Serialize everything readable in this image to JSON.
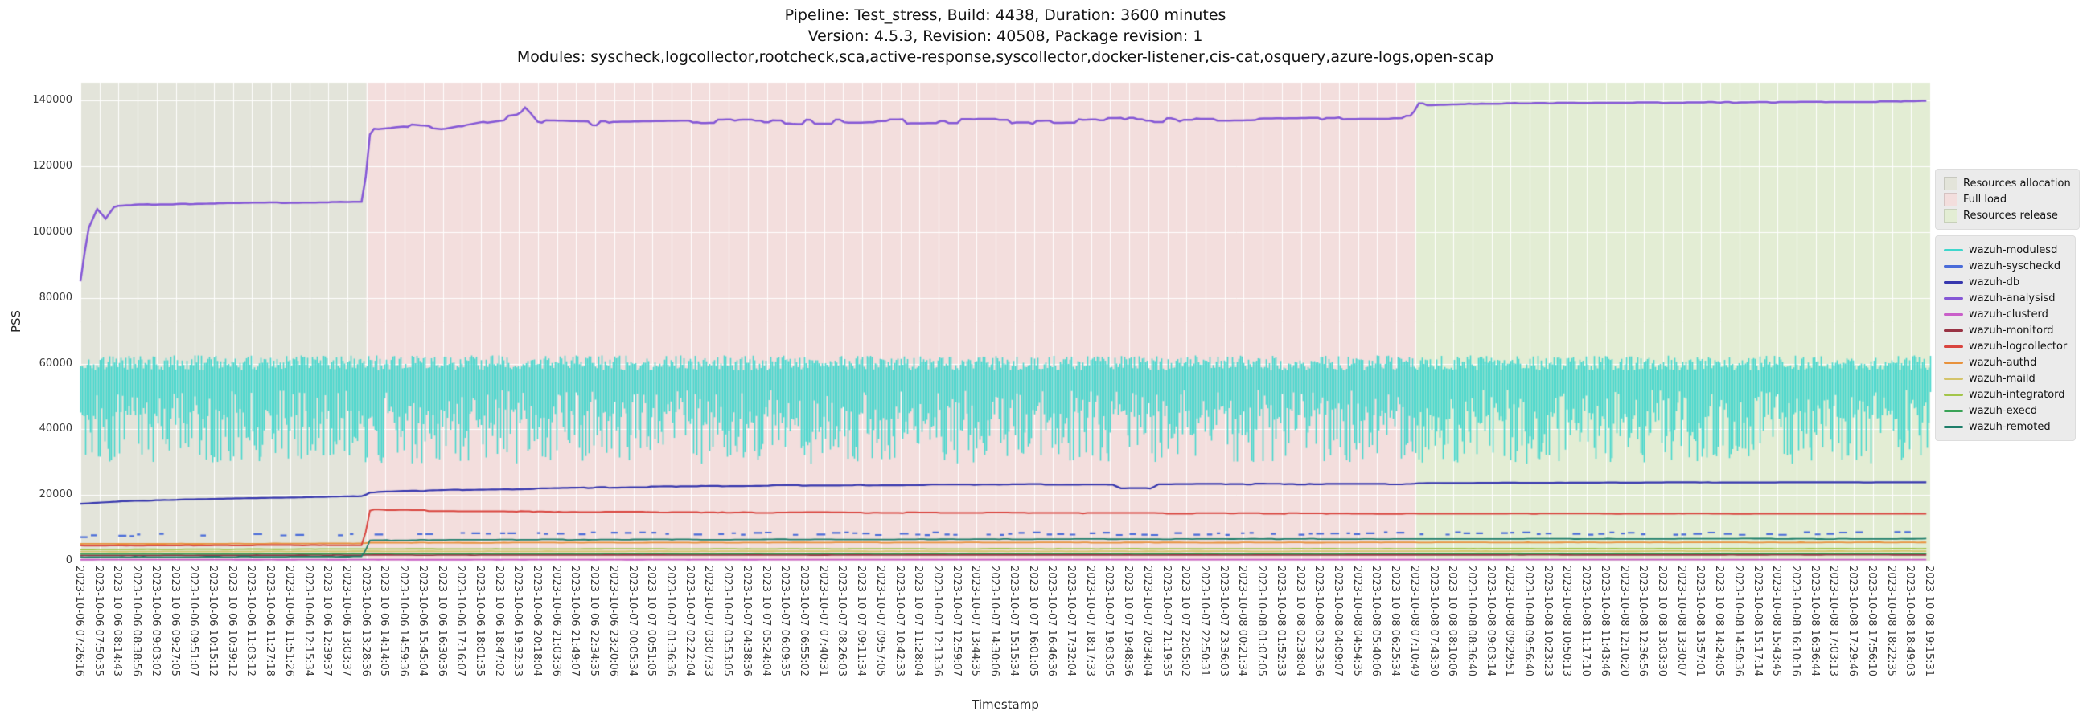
{
  "chart_data": {
    "type": "line",
    "title": "Pipeline: Test_stress, Build: 4438, Duration: 3600 minutes",
    "subtitle1": "Version: 4.5.3, Revision: 40508, Package revision: 1",
    "subtitle2": "Modules: syscheck,logcollector,rootcheck,sca,active-response,syscollector,docker-listener,cis-cat,osquery,azure-logs,open-scap",
    "xlabel": "Timestamp",
    "ylabel": "PSS",
    "ylim": [
      0,
      145500
    ],
    "yticks": [
      0,
      20000,
      40000,
      60000,
      80000,
      100000,
      120000,
      140000
    ],
    "grid": true,
    "legend_position": "right",
    "x_categories": [
      "2023-10-06 07:26:16",
      "2023-10-06 07:50:35",
      "2023-10-06 08:14:43",
      "2023-10-06 08:38:56",
      "2023-10-06 09:03:02",
      "2023-10-06 09:27:05",
      "2023-10-06 09:51:07",
      "2023-10-06 10:15:12",
      "2023-10-06 10:39:12",
      "2023-10-06 11:03:12",
      "2023-10-06 11:27:18",
      "2023-10-06 11:51:26",
      "2023-10-06 12:15:34",
      "2023-10-06 12:39:37",
      "2023-10-06 13:03:37",
      "2023-10-06 13:28:36",
      "2023-10-06 14:14:05",
      "2023-10-06 14:59:36",
      "2023-10-06 15:45:04",
      "2023-10-06 16:30:36",
      "2023-10-06 17:16:07",
      "2023-10-06 18:01:35",
      "2023-10-06 18:47:02",
      "2023-10-06 19:32:33",
      "2023-10-06 20:18:04",
      "2023-10-06 21:03:36",
      "2023-10-06 21:49:07",
      "2023-10-06 22:34:35",
      "2023-10-06 23:20:06",
      "2023-10-07 00:05:34",
      "2023-10-07 00:51:05",
      "2023-10-07 01:36:36",
      "2023-10-07 02:22:04",
      "2023-10-07 03:07:33",
      "2023-10-07 03:53:05",
      "2023-10-07 04:38:36",
      "2023-10-07 05:24:04",
      "2023-10-07 06:09:35",
      "2023-10-07 06:55:02",
      "2023-10-07 07:40:31",
      "2023-10-07 08:26:03",
      "2023-10-07 09:11:34",
      "2023-10-07 09:57:05",
      "2023-10-07 10:42:33",
      "2023-10-07 11:28:04",
      "2023-10-07 12:13:36",
      "2023-10-07 12:59:07",
      "2023-10-07 13:44:35",
      "2023-10-07 14:30:06",
      "2023-10-07 15:15:34",
      "2023-10-07 16:01:05",
      "2023-10-07 16:46:36",
      "2023-10-07 17:32:04",
      "2023-10-07 18:17:33",
      "2023-10-07 19:03:05",
      "2023-10-07 19:48:36",
      "2023-10-07 20:34:04",
      "2023-10-07 21:19:35",
      "2023-10-07 22:05:02",
      "2023-10-07 22:50:31",
      "2023-10-07 23:36:03",
      "2023-10-08 00:21:34",
      "2023-10-08 01:07:05",
      "2023-10-08 01:52:33",
      "2023-10-08 02:38:04",
      "2023-10-08 03:23:36",
      "2023-10-08 04:09:07",
      "2023-10-08 04:54:35",
      "2023-10-08 05:40:06",
      "2023-10-08 06:25:34",
      "2023-10-08 07:10:49",
      "2023-10-08 07:43:30",
      "2023-10-08 08:10:06",
      "2023-10-08 08:36:40",
      "2023-10-08 09:03:14",
      "2023-10-08 09:29:51",
      "2023-10-08 09:56:40",
      "2023-10-08 10:23:23",
      "2023-10-08 10:50:13",
      "2023-10-08 11:17:10",
      "2023-10-08 11:43:46",
      "2023-10-08 12:10:20",
      "2023-10-08 12:36:56",
      "2023-10-08 13:03:30",
      "2023-10-08 13:30:07",
      "2023-10-08 13:57:01",
      "2023-10-08 14:24:05",
      "2023-10-08 14:50:36",
      "2023-10-08 15:17:14",
      "2023-10-08 15:43:45",
      "2023-10-08 16:10:16",
      "2023-10-08 16:36:44",
      "2023-10-08 17:03:13",
      "2023-10-08 17:29:46",
      "2023-10-08 17:56:10",
      "2023-10-08 18:22:35",
      "2023-10-08 18:49:03",
      "2023-10-08 19:15:31"
    ],
    "phases": [
      {
        "label": "Resources allocation",
        "color": "#e3e4da",
        "start_index": 0,
        "end_index": 15
      },
      {
        "label": "Full load",
        "color": "#f3dedd",
        "start_index": 15,
        "end_index": 70
      },
      {
        "label": "Resources release",
        "color": "#e3edd4",
        "start_index": 70,
        "end_index": 97
      }
    ],
    "series": [
      {
        "name": "wazuh-modulesd",
        "color": "#3fd6cc",
        "style": "band",
        "z": 1,
        "band": {
          "high_min": 58000,
          "high_max": 62500,
          "low_min": 29500,
          "low_max": 46500,
          "shallow_low_min": 43000,
          "shallow_low_max": 52000,
          "shallow_prob": 0.32
        }
      },
      {
        "name": "wazuh-syscheckd",
        "color": "#4a6cd9",
        "style": "dashes",
        "z": 3,
        "jitter": 450,
        "keypoints": [
          [
            0,
            7600
          ],
          [
            15,
            8150
          ],
          [
            97,
            8300
          ]
        ]
      },
      {
        "name": "wazuh-db",
        "color": "#3737ae",
        "style": "line",
        "z": 5,
        "noise": 50,
        "noise_ranges": [
          [
            15,
            70,
            130
          ]
        ],
        "width": 2.2,
        "keypoints": [
          [
            0,
            17300
          ],
          [
            2,
            18050
          ],
          [
            5,
            18550
          ],
          [
            9,
            19050
          ],
          [
            12,
            19350
          ],
          [
            14.9,
            19700
          ],
          [
            15.05,
            20750
          ],
          [
            17,
            21150
          ],
          [
            20,
            21550
          ],
          [
            24,
            21950
          ],
          [
            28,
            22350
          ],
          [
            33,
            22700
          ],
          [
            38,
            22950
          ],
          [
            44,
            23100
          ],
          [
            50,
            23200
          ],
          [
            54.2,
            23250
          ],
          [
            54.5,
            22050
          ],
          [
            56.2,
            22100
          ],
          [
            56.5,
            23250
          ],
          [
            62,
            23300
          ],
          [
            69.9,
            23350
          ],
          [
            70.05,
            23600
          ],
          [
            78,
            23750
          ],
          [
            88,
            23850
          ],
          [
            97,
            23900
          ]
        ]
      },
      {
        "name": "wazuh-analysisd",
        "color": "#8557d6",
        "style": "line",
        "z": 6,
        "noise": 120,
        "noise_ranges": [
          [
            15,
            70,
            750
          ]
        ],
        "width": 2.5,
        "keypoints": [
          [
            0,
            85000
          ],
          [
            0.4,
            100800
          ],
          [
            0.9,
            107200
          ],
          [
            1.3,
            103900
          ],
          [
            1.8,
            107900
          ],
          [
            3,
            108400
          ],
          [
            8,
            108800
          ],
          [
            14.9,
            109300
          ],
          [
            15.05,
            128200
          ],
          [
            15.5,
            131800
          ],
          [
            17,
            132600
          ],
          [
            19,
            131400
          ],
          [
            21,
            133600
          ],
          [
            23,
            135200
          ],
          [
            23.4,
            137800
          ],
          [
            24,
            133600
          ],
          [
            27,
            133100
          ],
          [
            31,
            133500
          ],
          [
            35,
            133800
          ],
          [
            40,
            133500
          ],
          [
            45,
            133900
          ],
          [
            50,
            133700
          ],
          [
            55,
            134100
          ],
          [
            60,
            134000
          ],
          [
            64,
            134400
          ],
          [
            68,
            134700
          ],
          [
            69.9,
            134900
          ],
          [
            70.05,
            138600
          ],
          [
            73,
            139100
          ],
          [
            78,
            139350
          ],
          [
            85,
            139500
          ],
          [
            92,
            139650
          ],
          [
            95.5,
            139700
          ],
          [
            95.8,
            139950
          ],
          [
            97,
            139950
          ]
        ]
      },
      {
        "name": "wazuh-clusterd",
        "color": "#c95fc9",
        "style": "line",
        "z": 2,
        "noise": 15,
        "width": 1.8,
        "keypoints": [
          [
            0,
            310
          ],
          [
            97,
            350
          ]
        ]
      },
      {
        "name": "wazuh-monitord",
        "color": "#993344",
        "style": "line",
        "z": 2,
        "noise": 30,
        "width": 1.8,
        "keypoints": [
          [
            0,
            1620
          ],
          [
            15,
            1720
          ],
          [
            97,
            1780
          ]
        ]
      },
      {
        "name": "wazuh-logcollector",
        "color": "#d9453f",
        "style": "line",
        "z": 4,
        "noise": 50,
        "noise_ranges": [
          [
            15,
            17,
            650
          ],
          [
            17,
            70,
            150
          ]
        ],
        "width": 2,
        "keypoints": [
          [
            0,
            4600
          ],
          [
            14.9,
            4750
          ],
          [
            15.05,
            14800
          ],
          [
            15.4,
            15350
          ],
          [
            16,
            15100
          ],
          [
            18,
            15050
          ],
          [
            22,
            14950
          ],
          [
            28,
            14820
          ],
          [
            34,
            14700
          ],
          [
            40,
            14620
          ],
          [
            48,
            14520
          ],
          [
            56,
            14440
          ],
          [
            64,
            14380
          ],
          [
            70,
            14330
          ],
          [
            97,
            14300
          ]
        ]
      },
      {
        "name": "wazuh-authd",
        "color": "#e8923c",
        "style": "line",
        "z": 2,
        "noise": 60,
        "width": 1.8,
        "keypoints": [
          [
            0,
            5150
          ],
          [
            14.9,
            5260
          ],
          [
            15.05,
            5460
          ],
          [
            40,
            5530
          ],
          [
            70,
            5560
          ],
          [
            97,
            5580
          ]
        ]
      },
      {
        "name": "wazuh-maild",
        "color": "#d4c46a",
        "style": "line",
        "z": 2,
        "noise": 35,
        "width": 1.8,
        "keypoints": [
          [
            0,
            2760
          ],
          [
            15,
            2850
          ],
          [
            97,
            2920
          ]
        ]
      },
      {
        "name": "wazuh-integratord",
        "color": "#a3c54a",
        "style": "line",
        "z": 2,
        "noise": 45,
        "width": 1.8,
        "keypoints": [
          [
            0,
            3420
          ],
          [
            15,
            3580
          ],
          [
            60,
            3650
          ],
          [
            97,
            3680
          ]
        ]
      },
      {
        "name": "wazuh-execd",
        "color": "#3aa357",
        "style": "line",
        "z": 2,
        "noise": 35,
        "width": 1.8,
        "keypoints": [
          [
            0,
            2020
          ],
          [
            15,
            2120
          ],
          [
            97,
            2180
          ]
        ]
      },
      {
        "name": "wazuh-remoted",
        "color": "#1e7e6a",
        "style": "line",
        "z": 2,
        "noise": 80,
        "width": 1.8,
        "keypoints": [
          [
            0,
            1150
          ],
          [
            14.9,
            1260
          ],
          [
            15.05,
            6150
          ],
          [
            18,
            6350
          ],
          [
            30,
            6460
          ],
          [
            50,
            6560
          ],
          [
            70,
            6620
          ],
          [
            97,
            6680
          ]
        ]
      }
    ]
  }
}
